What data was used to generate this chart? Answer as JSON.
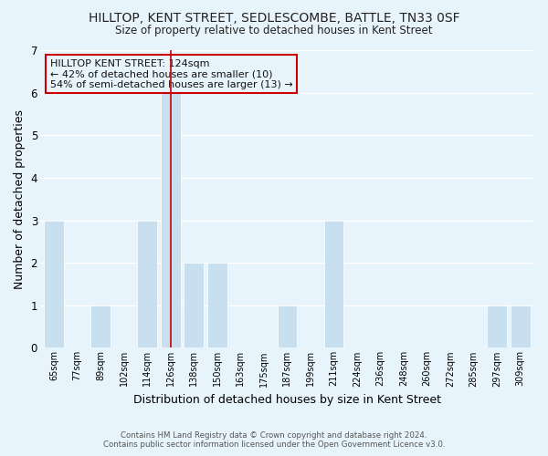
{
  "title": "HILLTOP, KENT STREET, SEDLESCOMBE, BATTLE, TN33 0SF",
  "subtitle": "Size of property relative to detached houses in Kent Street",
  "xlabel": "Distribution of detached houses by size in Kent Street",
  "ylabel": "Number of detached properties",
  "bar_color": "#c8dff0",
  "bar_edge_color": "#ffffff",
  "grid_color": "#ffffff",
  "bg_color": "#e8f4fb",
  "categories": [
    "65sqm",
    "77sqm",
    "89sqm",
    "102sqm",
    "114sqm",
    "126sqm",
    "138sqm",
    "150sqm",
    "163sqm",
    "175sqm",
    "187sqm",
    "199sqm",
    "211sqm",
    "224sqm",
    "236sqm",
    "248sqm",
    "260sqm",
    "272sqm",
    "285sqm",
    "297sqm",
    "309sqm"
  ],
  "values": [
    3,
    0,
    1,
    0,
    3,
    6,
    2,
    2,
    0,
    0,
    1,
    0,
    3,
    0,
    0,
    0,
    0,
    0,
    0,
    1,
    1
  ],
  "highlight_index": 5,
  "highlight_line_color": "#cc0000",
  "ylim": [
    0,
    7
  ],
  "yticks": [
    0,
    1,
    2,
    3,
    4,
    5,
    6,
    7
  ],
  "annotation_title": "HILLTOP KENT STREET: 124sqm",
  "annotation_line1": "← 42% of detached houses are smaller (10)",
  "annotation_line2": "54% of semi-detached houses are larger (13) →",
  "annotation_box_edge": "#cc0000",
  "footer1": "Contains HM Land Registry data © Crown copyright and database right 2024.",
  "footer2": "Contains public sector information licensed under the Open Government Licence v3.0."
}
